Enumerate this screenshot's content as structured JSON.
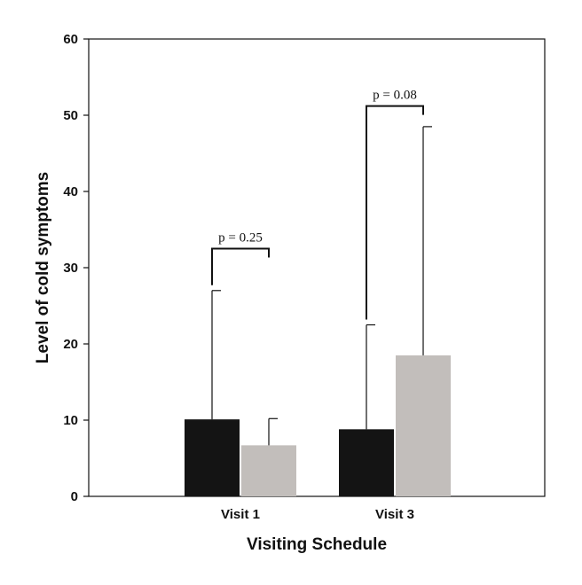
{
  "chart_data": {
    "type": "bar",
    "title": "",
    "xlabel": "Visiting Schedule",
    "ylabel": "Level of cold symptoms",
    "ylim": [
      0,
      60
    ],
    "yticks": [
      0,
      10,
      20,
      30,
      40,
      50,
      60
    ],
    "ytick_labels": [
      "0",
      "10",
      "20",
      "30",
      "40",
      "50",
      "60"
    ],
    "categories": [
      "Visit 1",
      "Visit 3"
    ],
    "series": [
      {
        "color": "#141414",
        "values": [
          10.1,
          8.8
        ],
        "error_upper": [
          27.0,
          22.5
        ]
      },
      {
        "color": "#c2bebb",
        "values": [
          6.7,
          18.5
        ],
        "error_upper": [
          10.2,
          48.5
        ]
      }
    ],
    "annotations": [
      {
        "category_index": 0,
        "text": "p = 0.25",
        "bracket_y": 32.5
      },
      {
        "category_index": 1,
        "text": "p = 0.08",
        "bracket_y": 51.2
      }
    ],
    "grid": false,
    "legend": "none"
  }
}
